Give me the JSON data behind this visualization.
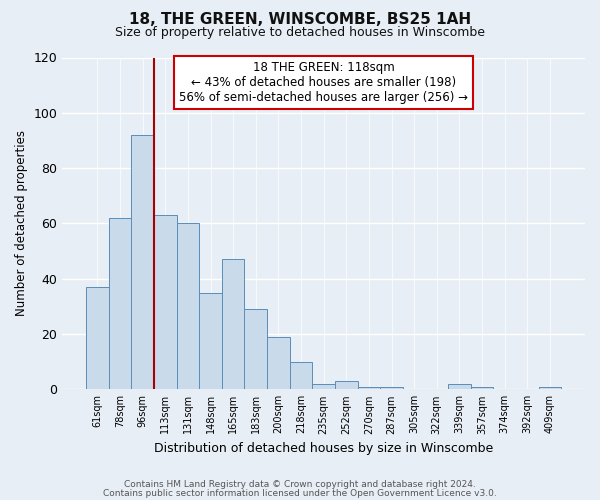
{
  "title": "18, THE GREEN, WINSCOMBE, BS25 1AH",
  "subtitle": "Size of property relative to detached houses in Winscombe",
  "xlabel": "Distribution of detached houses by size in Winscombe",
  "ylabel": "Number of detached properties",
  "bar_color": "#c9daea",
  "bar_edge_color": "#5b8db8",
  "categories": [
    "61sqm",
    "78sqm",
    "96sqm",
    "113sqm",
    "131sqm",
    "148sqm",
    "165sqm",
    "183sqm",
    "200sqm",
    "218sqm",
    "235sqm",
    "252sqm",
    "270sqm",
    "287sqm",
    "305sqm",
    "322sqm",
    "339sqm",
    "357sqm",
    "374sqm",
    "392sqm",
    "409sqm"
  ],
  "values": [
    37,
    62,
    92,
    63,
    60,
    35,
    47,
    29,
    19,
    10,
    2,
    3,
    1,
    1,
    0,
    0,
    2,
    1,
    0,
    0,
    1
  ],
  "vline_pos": 3.5,
  "vline_color": "#aa0000",
  "annotation_line1": "18 THE GREEN: 118sqm",
  "annotation_line2": "← 43% of detached houses are smaller (198)",
  "annotation_line3": "56% of semi-detached houses are larger (256) →",
  "annotation_box_facecolor": "#ffffff",
  "annotation_box_edgecolor": "#cc0000",
  "ylim": [
    0,
    120
  ],
  "yticks": [
    0,
    20,
    40,
    60,
    80,
    100,
    120
  ],
  "footer1": "Contains HM Land Registry data © Crown copyright and database right 2024.",
  "footer2": "Contains public sector information licensed under the Open Government Licence v3.0.",
  "fig_facecolor": "#e8eef5",
  "plot_facecolor": "#e8eef5",
  "grid_color": "#ffffff",
  "title_fontsize": 11,
  "subtitle_fontsize": 9
}
